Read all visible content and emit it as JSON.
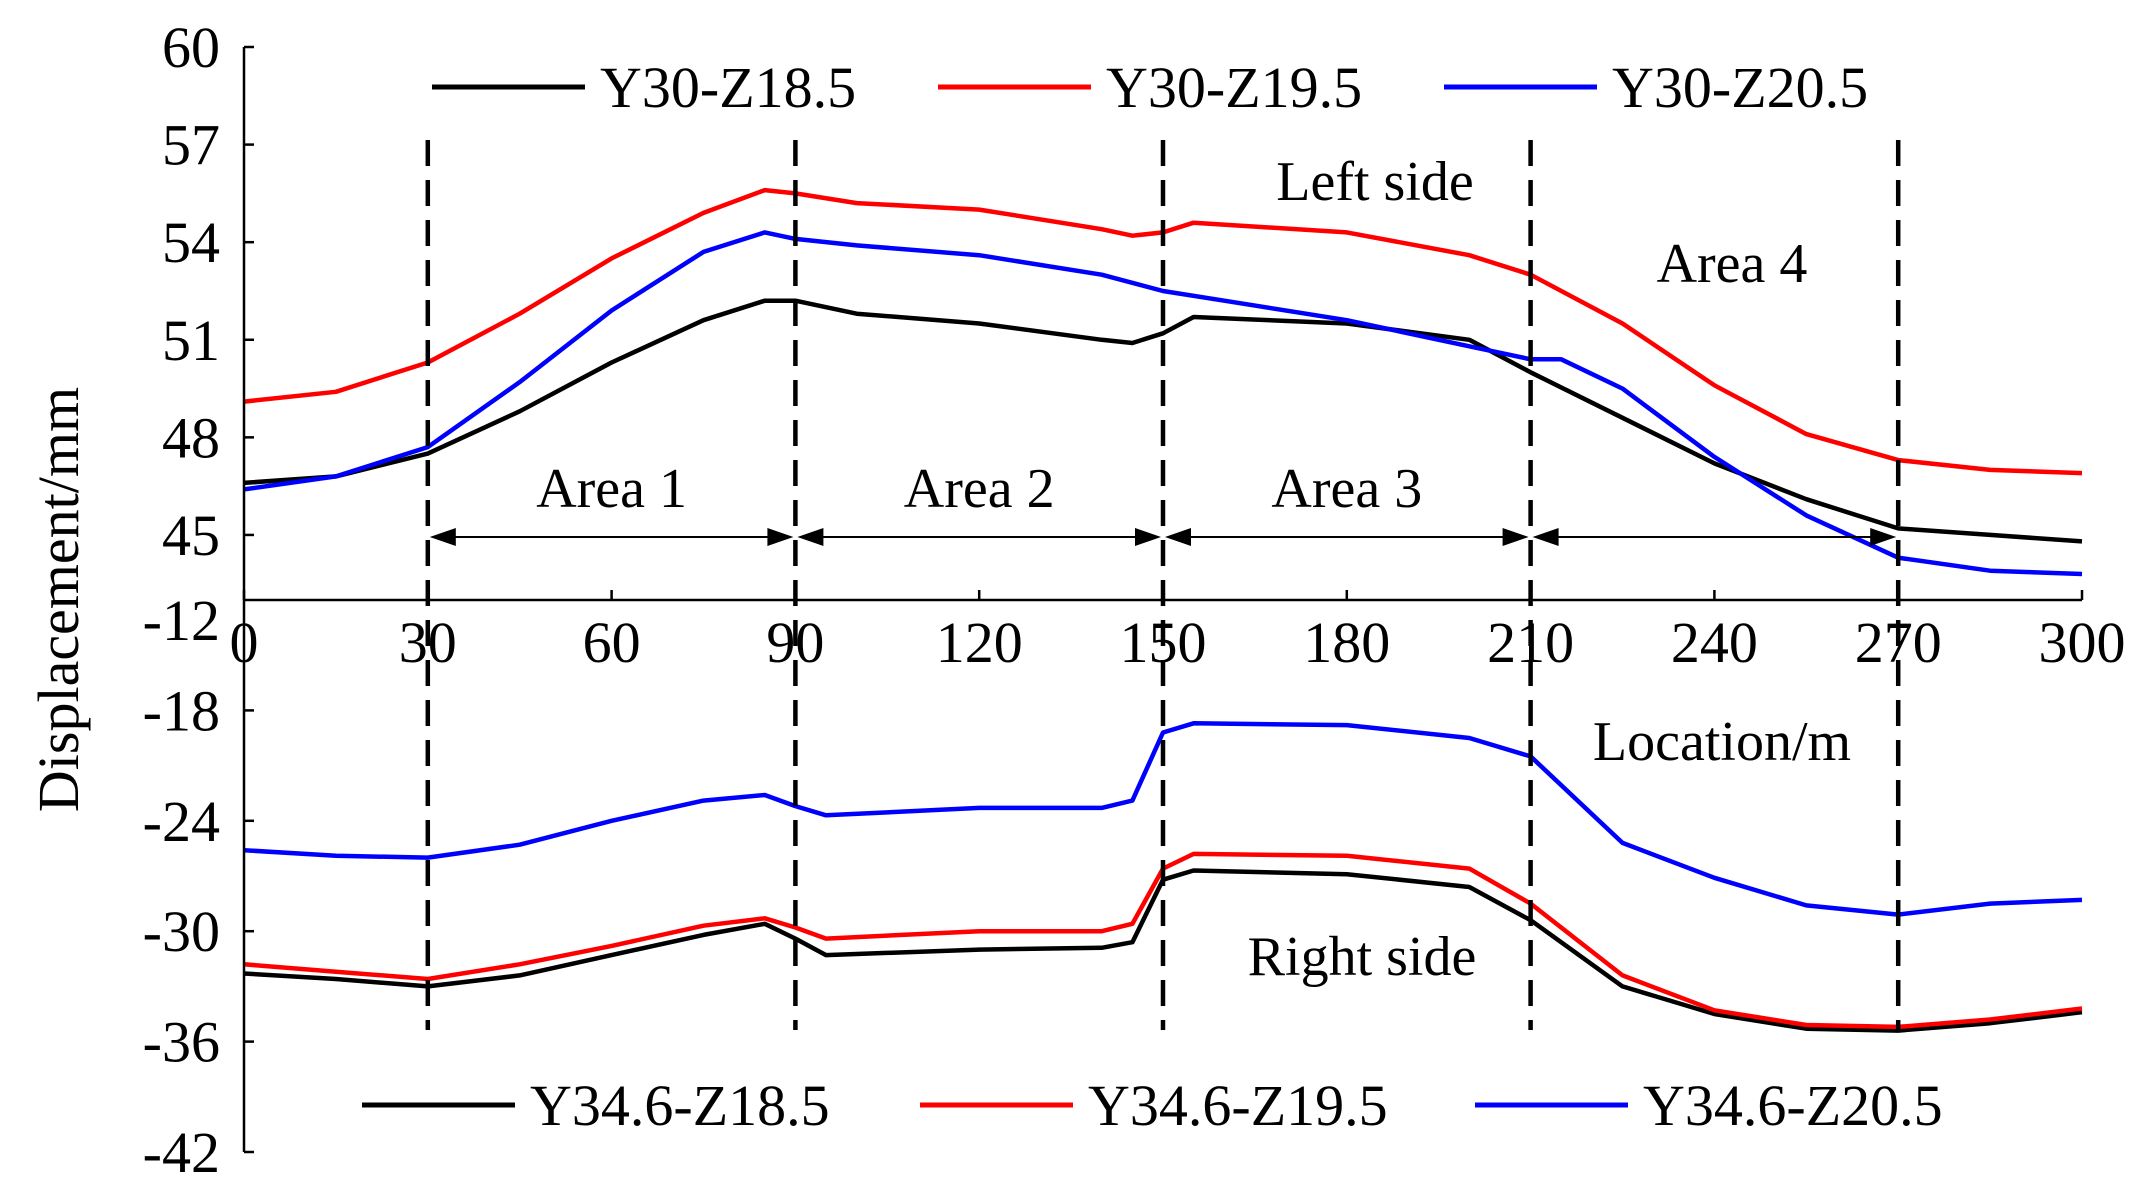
{
  "chart_data": [
    {
      "type": "line",
      "panel": "top",
      "annotation": "Left side",
      "xlabel": "Location/m",
      "ylabel": "Displacement/mm",
      "xlim": [
        0,
        300
      ],
      "ylim": [
        43,
        60
      ],
      "xticks": [
        0,
        30,
        60,
        90,
        120,
        150,
        180,
        210,
        240,
        270,
        300
      ],
      "ytick_labels": [
        "60",
        "57",
        "54",
        "51",
        "48",
        "45"
      ],
      "yticks": [
        60,
        57,
        54,
        51,
        48,
        45
      ],
      "grid": false,
      "legend_position": "top",
      "series": [
        {
          "name": "Y30-Z18.5",
          "color": "#000000",
          "x": [
            0,
            15,
            30,
            45,
            60,
            75,
            85,
            90,
            100,
            120,
            140,
            145,
            150,
            155,
            180,
            200,
            210,
            225,
            240,
            255,
            270,
            285,
            300
          ],
          "y": [
            46.6,
            46.8,
            47.5,
            48.8,
            50.3,
            51.6,
            52.2,
            52.2,
            51.8,
            51.5,
            51.0,
            50.9,
            51.2,
            51.7,
            51.5,
            51.0,
            50.0,
            48.6,
            47.2,
            46.1,
            45.2,
            45.0,
            44.8
          ]
        },
        {
          "name": "Y30-Z19.5",
          "color": "#ff0000",
          "x": [
            0,
            15,
            30,
            45,
            60,
            75,
            85,
            90,
            100,
            120,
            140,
            145,
            150,
            155,
            180,
            200,
            210,
            225,
            240,
            255,
            270,
            285,
            300
          ],
          "y": [
            49.1,
            49.4,
            50.3,
            51.8,
            53.5,
            54.9,
            55.6,
            55.5,
            55.2,
            55.0,
            54.4,
            54.2,
            54.3,
            54.6,
            54.3,
            53.6,
            53.0,
            51.5,
            49.6,
            48.1,
            47.3,
            47.0,
            46.9
          ]
        },
        {
          "name": "Y30-Z20.5",
          "color": "#0000ff",
          "x": [
            0,
            15,
            30,
            45,
            60,
            75,
            85,
            90,
            100,
            120,
            140,
            150,
            160,
            180,
            200,
            210,
            215,
            225,
            240,
            255,
            270,
            285,
            300
          ],
          "y": [
            46.4,
            46.8,
            47.7,
            49.7,
            51.9,
            53.7,
            54.3,
            54.1,
            53.9,
            53.6,
            53.0,
            52.5,
            52.2,
            51.6,
            50.8,
            50.4,
            50.4,
            49.5,
            47.4,
            45.6,
            44.3,
            43.9,
            43.8
          ]
        }
      ],
      "region_lines_x": [
        30,
        90,
        150,
        210,
        270
      ],
      "areas": [
        {
          "label": "Area 1",
          "from": 30,
          "to": 90
        },
        {
          "label": "Area 2",
          "from": 90,
          "to": 150
        },
        {
          "label": "Area 3",
          "from": 150,
          "to": 210
        },
        {
          "label": "Area 4",
          "from": 210,
          "to": 270
        }
      ]
    },
    {
      "type": "line",
      "panel": "bottom",
      "annotation": "Right side",
      "xlim": [
        0,
        300
      ],
      "ylim": [
        -42,
        -12
      ],
      "ytick_labels": [
        "-12",
        "-18",
        "-24",
        "-30",
        "-36",
        "-42"
      ],
      "yticks": [
        -12,
        -18,
        -24,
        -30,
        -36,
        -42
      ],
      "grid": false,
      "legend_position": "bottom",
      "series": [
        {
          "name": "Y34.6-Z18.5",
          "color": "#000000",
          "x": [
            0,
            15,
            30,
            45,
            60,
            75,
            85,
            90,
            95,
            120,
            140,
            145,
            150,
            155,
            180,
            200,
            210,
            225,
            240,
            255,
            270,
            285,
            300
          ],
          "y": [
            -32.3,
            -32.6,
            -33.0,
            -32.4,
            -31.3,
            -30.2,
            -29.6,
            -30.4,
            -31.3,
            -31.0,
            -30.9,
            -30.6,
            -27.2,
            -26.7,
            -26.9,
            -27.6,
            -29.4,
            -33.0,
            -34.5,
            -35.3,
            -35.4,
            -35.0,
            -34.4
          ]
        },
        {
          "name": "Y34.6-Z19.5",
          "color": "#ff0000",
          "x": [
            0,
            15,
            30,
            45,
            60,
            75,
            85,
            90,
            95,
            120,
            140,
            145,
            150,
            155,
            180,
            200,
            210,
            225,
            240,
            255,
            270,
            285,
            300
          ],
          "y": [
            -31.8,
            -32.2,
            -32.6,
            -31.8,
            -30.8,
            -29.7,
            -29.3,
            -29.8,
            -30.4,
            -30.0,
            -30.0,
            -29.6,
            -26.6,
            -25.8,
            -25.9,
            -26.6,
            -28.5,
            -32.4,
            -34.3,
            -35.1,
            -35.2,
            -34.8,
            -34.2
          ]
        },
        {
          "name": "Y34.6-Z20.5",
          "color": "#0000ff",
          "x": [
            0,
            15,
            30,
            45,
            60,
            75,
            85,
            90,
            95,
            120,
            140,
            145,
            150,
            155,
            180,
            200,
            210,
            225,
            240,
            255,
            270,
            285,
            300
          ],
          "y": [
            -25.6,
            -25.9,
            -26.0,
            -25.3,
            -24.0,
            -22.9,
            -22.6,
            -23.2,
            -23.7,
            -23.3,
            -23.3,
            -22.9,
            -19.2,
            -18.7,
            -18.8,
            -19.5,
            -20.5,
            -25.2,
            -27.1,
            -28.6,
            -29.1,
            -28.5,
            -28.3
          ]
        }
      ]
    }
  ]
}
